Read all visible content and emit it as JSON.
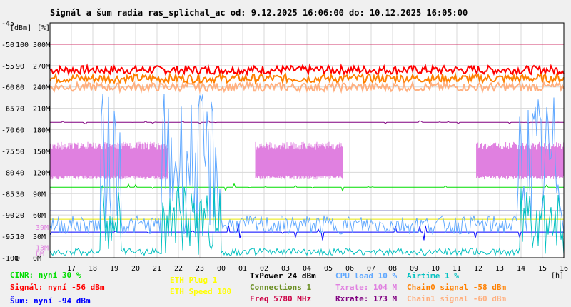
{
  "title": "Signál a šum radia ras_splichal_ac od: 9.12.2025 16:06:00 do: 10.12.2025 16:05:00",
  "chart_data": {
    "type": "line",
    "title": "Signál a šum radia ras_splichal_ac od: 9.12.2025 16:06:00 do: 10.12.2025 16:05:00",
    "x_unit": "[h]",
    "x_ticks": [
      "17",
      "18",
      "19",
      "20",
      "21",
      "22",
      "23",
      "00",
      "01",
      "02",
      "03",
      "04",
      "05",
      "06",
      "07",
      "08",
      "09",
      "10",
      "11",
      "12",
      "13",
      "14",
      "15",
      "16"
    ],
    "y_axes": {
      "dbm": {
        "unit": "[dBm]",
        "ticks": [
          "-45",
          "-50",
          "-55",
          "-60",
          "-65",
          "-70",
          "-75",
          "-80",
          "-85",
          "-90",
          "-95",
          "-100"
        ],
        "range": [
          -100,
          -45
        ]
      },
      "percent": {
        "unit": "[%]",
        "ticks": [
          "100",
          "90",
          "80",
          "70",
          "60",
          "50",
          "40",
          "30",
          "20",
          "10",
          "0"
        ],
        "range": [
          0,
          100
        ]
      },
      "rate": {
        "ticks": [
          "300M",
          "270M",
          "240M",
          "210M",
          "180M",
          "150M",
          "120M",
          "90M",
          "60M",
          "30M",
          "0M"
        ],
        "range": [
          0,
          300
        ]
      },
      "extra": [
        "39M",
        "13M",
        "6M"
      ]
    },
    "series": [
      {
        "name": "Signál",
        "color": "#ff0000",
        "level": -56,
        "unit": "dBm",
        "jitter": 1.0
      },
      {
        "name": "Chain0 signal",
        "color": "#ff8000",
        "level": -58,
        "unit": "dBm",
        "jitter": 1.0
      },
      {
        "name": "Chain1 signal",
        "color": "#ffb080",
        "level": -60,
        "unit": "dBm",
        "jitter": 1.0
      },
      {
        "name": "Rxrate",
        "color": "#800080",
        "level": 173,
        "unit": "M"
      },
      {
        "name": "Txrate",
        "color": "#e080e0",
        "level": 104,
        "unit": "M",
        "low": 100,
        "high": 148,
        "segments": [
          [
            0.0,
            0.23
          ],
          [
            0.4,
            0.57
          ],
          [
            0.83,
            1.0
          ]
        ]
      },
      {
        "name": "CINR",
        "color": "#00dd00",
        "level": 30,
        "unit": "%"
      },
      {
        "name": "Šum",
        "color": "#0000ff",
        "level": -94,
        "unit": "dBm"
      },
      {
        "name": "CPU load",
        "color": "#60a8ff",
        "level": 10,
        "unit": "%"
      },
      {
        "name": "Airtime",
        "color": "#00c0c0",
        "level": 1,
        "unit": "%"
      }
    ],
    "ref_lines": [
      {
        "value": -50,
        "axis": "dbm",
        "color": "#cc0044"
      },
      {
        "value": -71,
        "axis": "dbm",
        "color": "#6600aa"
      },
      {
        "value": -89,
        "axis": "dbm",
        "color": "#000080"
      },
      {
        "value": -91,
        "axis": "dbm",
        "color": "#e8e800"
      }
    ],
    "grid": true
  },
  "legend": [
    {
      "text": "CINR: nyní 30 %",
      "color": "#00dd00"
    },
    {
      "text": "Signál: nyní -56 dBm",
      "color": "#ff0000"
    },
    {
      "text": "Šum: nyní -94 dBm",
      "color": "#0000ff"
    },
    {
      "text": "ETH Plug 1",
      "color": "#ffff00"
    },
    {
      "text": "ETH Speed 100",
      "color": "#ffff00"
    },
    {
      "text": "TxPower 24 dBm",
      "color": "#000000"
    },
    {
      "text": "Connections 1",
      "color": "#6b8e23"
    },
    {
      "text": "Freq 5780 MHz",
      "color": "#cc0044"
    },
    {
      "text": "CPU load 10 %",
      "color": "#60a8ff"
    },
    {
      "text": "Txrate: 104 M",
      "color": "#e080e0"
    },
    {
      "text": "Rxrate: 173 M",
      "color": "#800080"
    },
    {
      "text": "Airtime 1 %",
      "color": "#00c0c0"
    },
    {
      "text": "Chain0 signal -58 dBm",
      "color": "#ff8000"
    },
    {
      "text": "Chain1 signal -60 dBm",
      "color": "#ffb080"
    }
  ]
}
